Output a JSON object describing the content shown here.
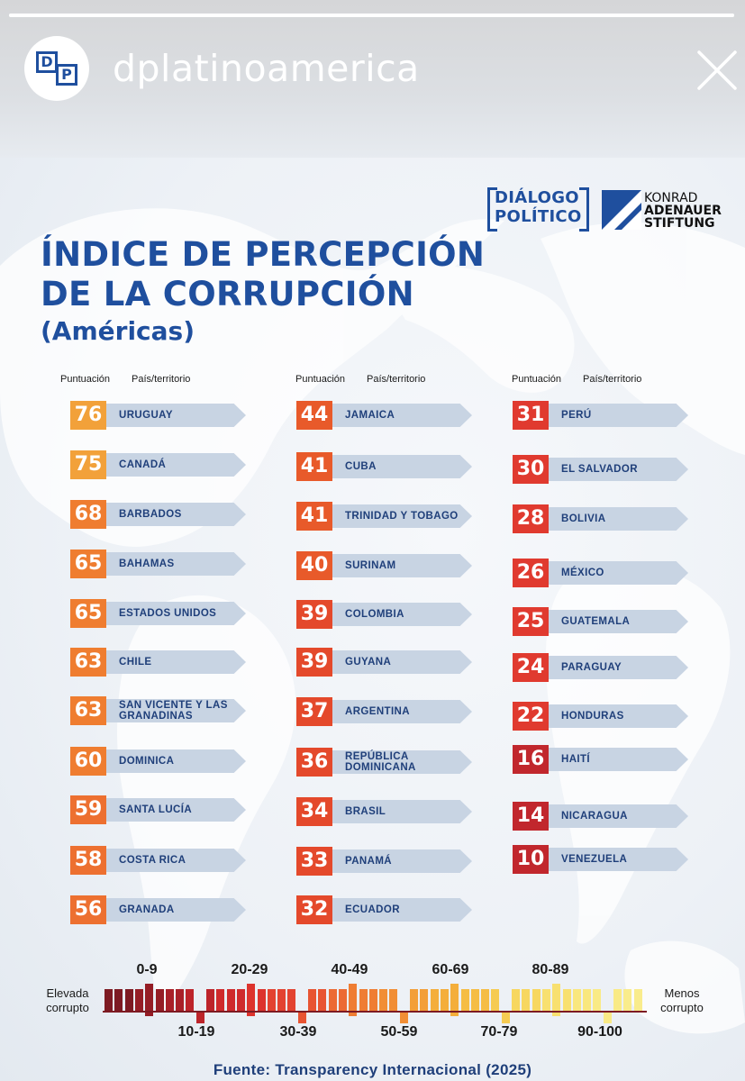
{
  "story": {
    "username": "dplatinoamerica",
    "avatar_letters": [
      "D",
      "P"
    ],
    "progress": 1.0,
    "close_icon": "close-icon"
  },
  "logos": {
    "dialogo_line1": "DIÁLOGO",
    "dialogo_line2": "POLÍTICO",
    "kas_line1": "KONRAD",
    "kas_line2": "ADENAUER",
    "kas_line3": "STIFTUNG"
  },
  "title": {
    "line1": "ÍNDICE DE PERCEPCIÓN",
    "line2": "DE LA CORRUPCIÓN",
    "subtitle": "(Américas)"
  },
  "column_headers": {
    "score": "Puntuación",
    "country": "País/territorio"
  },
  "colors": {
    "brand_blue": "#1f4f9e",
    "dark_red": "#c1272d",
    "red": "#e03a2f",
    "orange_red": "#e85a2a",
    "orange": "#ef7d30",
    "amber": "#f2a13a",
    "arrow_bg": "#c8d4e3"
  },
  "columns": [
    {
      "entries": [
        {
          "score": "76",
          "country": "URUGUAY",
          "color": "#f2a13a"
        },
        {
          "score": "75",
          "country": "CANADÁ",
          "color": "#f2a13a"
        },
        {
          "score": "68",
          "country": "BARBADOS",
          "color": "#ef7d30"
        },
        {
          "score": "65",
          "country": "BAHAMAS",
          "color": "#ef7d30"
        },
        {
          "score": "65",
          "country": "ESTADOS UNIDOS",
          "color": "#ef7d30"
        },
        {
          "score": "63",
          "country": "CHILE",
          "color": "#ef7d30"
        },
        {
          "score": "63",
          "country": "SAN VICENTE Y LAS GRANADINAS",
          "color": "#ef7d30"
        },
        {
          "score": "60",
          "country": "DOMINICA",
          "color": "#ef7d30"
        },
        {
          "score": "59",
          "country": "SANTA LUCÍA",
          "color": "#ed7030"
        },
        {
          "score": "58",
          "country": "COSTA RICA",
          "color": "#ed7030"
        },
        {
          "score": "56",
          "country": "GRANADA",
          "color": "#ed7030"
        }
      ]
    },
    {
      "entries": [
        {
          "score": "44",
          "country": "JAMAICA",
          "color": "#e85a2a"
        },
        {
          "score": "41",
          "country": "CUBA",
          "color": "#e85a2a"
        },
        {
          "score": "41",
          "country": "TRINIDAD Y TOBAGO",
          "color": "#e85a2a"
        },
        {
          "score": "40",
          "country": "SURINAM",
          "color": "#e85a2a"
        },
        {
          "score": "39",
          "country": "COLOMBIA",
          "color": "#e4492b"
        },
        {
          "score": "39",
          "country": "GUYANA",
          "color": "#e4492b"
        },
        {
          "score": "37",
          "country": "ARGENTINA",
          "color": "#e4492b"
        },
        {
          "score": "36",
          "country": "REPÚBLICA DOMINICANA",
          "color": "#e4492b"
        },
        {
          "score": "34",
          "country": "BRASIL",
          "color": "#e4492b"
        },
        {
          "score": "33",
          "country": "PANAMÁ",
          "color": "#e4492b"
        },
        {
          "score": "32",
          "country": "ECUADOR",
          "color": "#e4492b"
        }
      ]
    },
    {
      "entries": [
        {
          "score": "31",
          "country": "PERÚ",
          "color": "#e03a2f"
        },
        {
          "score": "30",
          "country": "EL SALVADOR",
          "color": "#e03a2f"
        },
        {
          "score": "28",
          "country": "BOLIVIA",
          "color": "#e03a2f"
        },
        {
          "score": "26",
          "country": "MÉXICO",
          "color": "#e03a2f"
        },
        {
          "score": "25",
          "country": "GUATEMALA",
          "color": "#e03a2f"
        },
        {
          "score": "24",
          "country": "PARAGUAY",
          "color": "#e03a2f"
        },
        {
          "score": "22",
          "country": "HONDURAS",
          "color": "#e03a2f"
        },
        {
          "score": "16",
          "country": "HAITÍ",
          "color": "#c1272d"
        },
        {
          "score": "14",
          "country": "NICARAGUA",
          "color": "#c1272d"
        },
        {
          "score": "10",
          "country": "VENEZUELA",
          "color": "#c1272d"
        }
      ]
    }
  ],
  "scale": {
    "left_label": "Elevada corrupto",
    "right_label": "Menos corrupto",
    "top_ranges": [
      "0-9",
      "20-29",
      "40-49",
      "60-69",
      "80-89"
    ],
    "bottom_ranges": [
      "10-19",
      "30-39",
      "50-59",
      "70-79",
      "90-100"
    ]
  },
  "source": "Fuente: Transparency Internacional (2025)"
}
